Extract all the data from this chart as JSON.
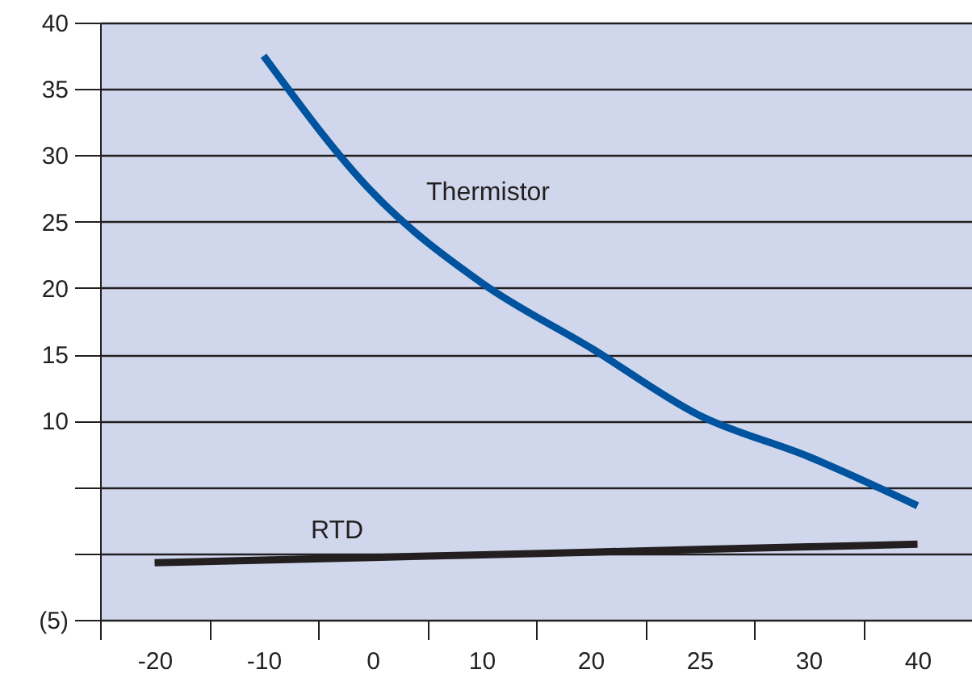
{
  "chart_data": {
    "type": "line",
    "categories": [
      "-20",
      "-10",
      "0",
      "10",
      "20",
      "25",
      "30",
      "40"
    ],
    "series": [
      {
        "name": "Thermistor",
        "color": "#00539f",
        "values": [
          null,
          37.5,
          27.2,
          20.4,
          15.5,
          10.4,
          7.3,
          3.6
        ]
      },
      {
        "name": "RTD",
        "color": "#231f20",
        "values": [
          -0.7,
          -0.5,
          -0.3,
          -0.1,
          0.1,
          0.3,
          0.5,
          0.7
        ]
      }
    ],
    "ylim": [
      -5,
      40
    ],
    "yticks": [
      {
        "value": -5,
        "label": "(5)"
      },
      {
        "value": 0,
        "label": null
      },
      {
        "value": 5,
        "label": null
      },
      10,
      15,
      20,
      25,
      30,
      35,
      40
    ],
    "grid": "y",
    "marker": "none",
    "line_style": "solid"
  }
}
